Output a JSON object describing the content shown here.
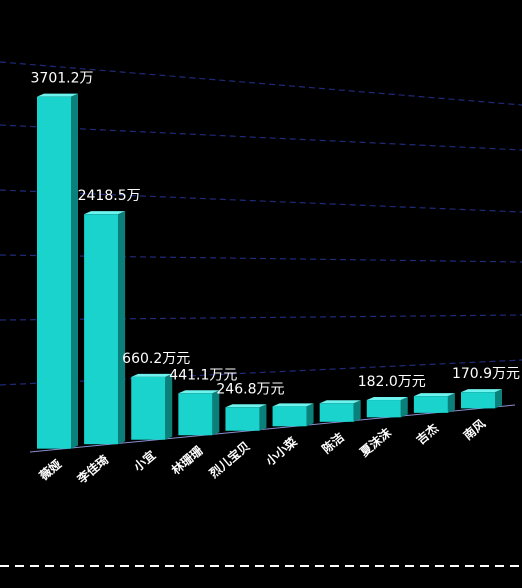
{
  "chart_data": {
    "type": "bar3d",
    "categories": [
      "薇娅",
      "李佳琦",
      "小宜",
      "林珊珊",
      "烈儿宝贝",
      "小小菜",
      "陈洁",
      "夏沫沫",
      "吉杰",
      "南风"
    ],
    "values": [
      3701.2,
      2418.5,
      660.2,
      441.1,
      246.8,
      210,
      195,
      182.0,
      176,
      170.9
    ],
    "value_labels": [
      "3701.2万",
      "2418.5万",
      "660.2万元",
      "441.1万元",
      "246.8万元",
      null,
      null,
      "182.0万元",
      null,
      "170.9万元"
    ],
    "color": "#19d3cc"
  }
}
